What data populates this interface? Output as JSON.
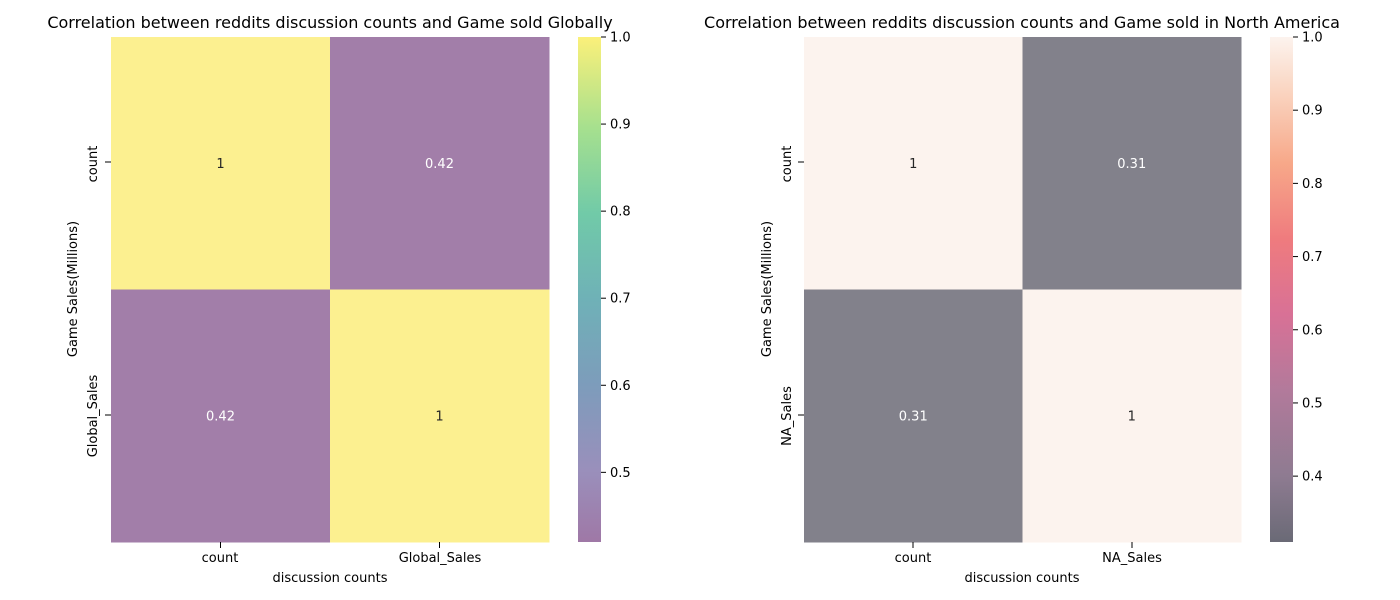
{
  "chart_data": [
    {
      "type": "heatmap",
      "title": "Correlation between reddits discussion counts and Game sold Globally",
      "xlabel": "discussion counts",
      "ylabel": "Game Sales(Millions)",
      "x_categories": [
        "count",
        "Global_Sales"
      ],
      "y_categories": [
        "count",
        "Global_Sales"
      ],
      "matrix": [
        [
          1,
          0.42
        ],
        [
          0.42,
          1
        ]
      ],
      "cell_labels": [
        [
          "1",
          "0.42"
        ],
        [
          "0.42",
          "1"
        ]
      ],
      "colormap": "viridis",
      "colors": {
        "high": "#fcf090",
        "low": "#a27ea9"
      },
      "alpha": 0.6,
      "colorbar": {
        "range": [
          0.42,
          1.0
        ],
        "ticks": [
          "0.5",
          "0.6",
          "0.7",
          "0.8",
          "0.9",
          "1.0"
        ]
      }
    },
    {
      "type": "heatmap",
      "title": "Correlation between reddits discussion counts and Game sold in North America",
      "xlabel": "discussion counts",
      "ylabel": "Game Sales(Millions)",
      "x_categories": [
        "count",
        "NA_Sales"
      ],
      "y_categories": [
        "count",
        "NA_Sales"
      ],
      "matrix": [
        [
          1,
          0.31
        ],
        [
          0.31,
          1
        ]
      ],
      "cell_labels": [
        [
          "1",
          "0.31"
        ],
        [
          "0.31",
          "1"
        ]
      ],
      "colormap": "rocket",
      "colors": {
        "high": "#fcf3ee",
        "low": "#82818b"
      },
      "alpha": 0.6,
      "colorbar": {
        "range": [
          0.31,
          1.0
        ],
        "ticks": [
          "0.4",
          "0.5",
          "0.6",
          "0.7",
          "0.8",
          "0.9",
          "1.0"
        ]
      }
    }
  ]
}
